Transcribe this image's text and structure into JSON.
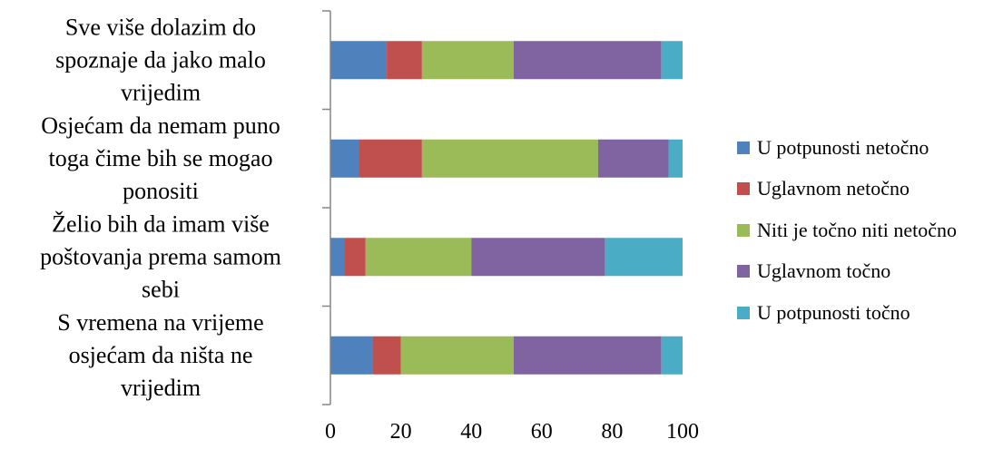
{
  "chart_data": {
    "type": "bar",
    "orientation": "horizontal",
    "stacked": true,
    "categories": [
      [
        "Sve više dolazim do",
        "spoznaje da jako malo",
        "vrijedim"
      ],
      [
        "Osjećam da nemam puno",
        "toga čime bih se mogao",
        "ponositi"
      ],
      [
        "Želio bih da imam više",
        "poštovanja prema samom",
        "sebi"
      ],
      [
        "S vremena na vrijeme",
        "osjećam da ništa ne",
        "vrijedim"
      ]
    ],
    "series": [
      {
        "name": "U potpunosti netočno",
        "color": "#4F81BD",
        "values": [
          16,
          8,
          4,
          12
        ]
      },
      {
        "name": "Uglavnom netočno",
        "color": "#C0504D",
        "values": [
          10,
          18,
          6,
          8
        ]
      },
      {
        "name": "Niti je točno niti netočno",
        "color": "#9BBB59",
        "values": [
          26,
          50,
          30,
          32
        ]
      },
      {
        "name": "Uglavnom točno",
        "color": "#8064A2",
        "values": [
          42,
          20,
          38,
          42
        ]
      },
      {
        "name": "U potpunosti točno",
        "color": "#4BACC6",
        "values": [
          6,
          4,
          22,
          6
        ]
      }
    ],
    "xlim": [
      0,
      100
    ],
    "xticks": [
      "0",
      "20",
      "40",
      "60",
      "80",
      "100"
    ],
    "grid": false,
    "legend_position": "right"
  }
}
